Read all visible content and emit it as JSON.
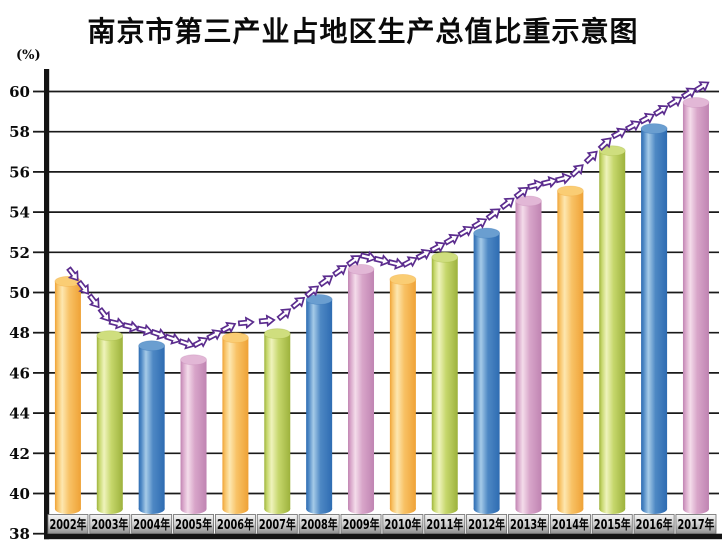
{
  "title": "南京市第三产业占地区生产总值比重示意图",
  "y_axis_unit": "(%)",
  "chart_data": {
    "type": "bar",
    "title": "南京市第三产业占地区生产总值比重示意图",
    "xlabel": "",
    "ylabel": "(%)",
    "categories": [
      "2002年",
      "2003年",
      "2004年",
      "2005年",
      "2006年",
      "2007年",
      "2008年",
      "2009年",
      "2010年",
      "2011年",
      "2012年",
      "2013年",
      "2014年",
      "2015年",
      "2016年",
      "2017年"
    ],
    "values": [
      50.8,
      48.1,
      47.6,
      46.9,
      48.0,
      48.2,
      49.9,
      51.4,
      50.9,
      52.0,
      53.2,
      54.8,
      55.3,
      57.3,
      58.4,
      59.7
    ],
    "ylim": [
      38,
      60
    ],
    "yticks": [
      38,
      40,
      42,
      44,
      46,
      48,
      50,
      52,
      54,
      56,
      58,
      60
    ],
    "grid": true,
    "legend": "none",
    "bar_style": "3d-cylinder",
    "trend_line": "dashed-arrow-curve-over-bar-tops",
    "color_cycle": [
      "orange",
      "green",
      "blue",
      "pink"
    ],
    "palette": {
      "orange": {
        "edge": "#EFA236",
        "mid": "#F8C266",
        "highlight": "#FDE7B0",
        "top": "#FACD74"
      },
      "green": {
        "edge": "#9DB23C",
        "mid": "#C6D76C",
        "highlight": "#EFF3BC",
        "top": "#CFDE7E"
      },
      "blue": {
        "edge": "#2E6CB2",
        "mid": "#4E88C4",
        "highlight": "#A6CBE8",
        "top": "#6A9ED0"
      },
      "pink": {
        "edge": "#C084B2",
        "mid": "#D8A5C9",
        "highlight": "#F4DCEA",
        "top": "#E2B7D6"
      }
    },
    "trend_arrow_outline": "#5B2C8E",
    "trend_arrow_fill": "#FFFFFF",
    "axis_color": "#141414",
    "gridline_color": "#1a1a1a",
    "xtick_box": {
      "fill_top": "#F6F6F6",
      "fill_mid": "#CFCFCF",
      "fill_bottom": "#8E8E8E",
      "border": "#6A6A6A",
      "text_color": "#000000"
    }
  }
}
